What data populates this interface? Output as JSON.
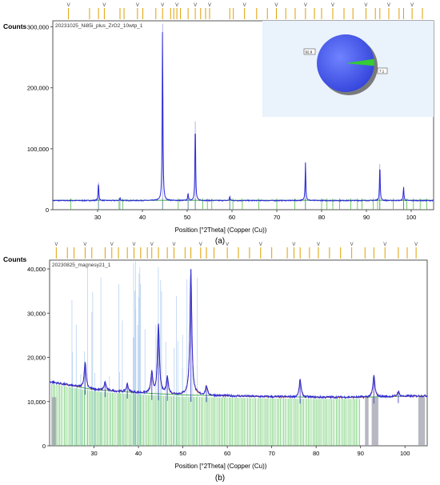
{
  "figure": {
    "caption_a": "(a)",
    "caption_b": "(b)"
  },
  "chart_data": [
    {
      "type": "line",
      "panel": "a",
      "title": "20231025_Ni85i_plus_ZrO2_10wtp_1",
      "ylabel": "Counts",
      "xlabel": "Position [°2Theta] (Copper (Cu))",
      "xlim": [
        20,
        105
      ],
      "ylim": [
        0,
        310000
      ],
      "xticks": [
        30,
        40,
        50,
        60,
        70,
        80,
        90,
        100
      ],
      "yticks": [
        0,
        100000,
        200000,
        300000
      ],
      "ytick_labels": [
        "0",
        "100,000",
        "200,000",
        "300,000"
      ],
      "grid": false,
      "colors": {
        "pattern": "#2b2bd6",
        "background_fit": "#4caf50",
        "ref_marks": "#e0a000",
        "pie_main": "#4a5ef0",
        "pie_minor": "#33cc33"
      },
      "baseline": 15000,
      "peaks": [
        {
          "x": 30.2,
          "y": 45000
        },
        {
          "x": 35.0,
          "y": 20000
        },
        {
          "x": 44.5,
          "y": 305000
        },
        {
          "x": 50.2,
          "y": 28000
        },
        {
          "x": 51.8,
          "y": 145000
        },
        {
          "x": 59.5,
          "y": 22000
        },
        {
          "x": 76.4,
          "y": 78000
        },
        {
          "x": 93.0,
          "y": 75000
        },
        {
          "x": 98.3,
          "y": 38000
        }
      ],
      "pie": {
        "slices": [
          {
            "label": "92.9",
            "value": 92.9
          },
          {
            "label": "7.1",
            "value": 7.1
          }
        ]
      },
      "ref_positions_top": [
        23.5,
        28.2,
        30.2,
        31.5,
        35.0,
        35.9,
        38.9,
        40.1,
        43.0,
        44.5,
        46.3,
        47.0,
        47.7,
        48.5,
        50.2,
        51.8,
        53.0,
        54.1,
        55.0,
        59.5,
        60.3,
        62.8,
        65.5,
        67.9,
        69.9,
        72.0,
        74.1,
        76.4,
        78.4,
        80.0,
        82.5,
        85.0,
        87.0,
        89.9,
        92.0,
        93.0,
        95.0,
        97.3,
        98.3,
        100.2,
        102.5
      ],
      "ref_positions_bottom": [
        24.0,
        30.2,
        34.8,
        35.6,
        44.5,
        48.0,
        50.2,
        51.8,
        53.5,
        54.5,
        55.5,
        59.5,
        60.2,
        62.3,
        66.0,
        70.0,
        74.0,
        76.4,
        80.0,
        81.2,
        82.5,
        84.0,
        86.5,
        88.0,
        89.0,
        91.5,
        92.5,
        93.0,
        96.0,
        98.3,
        99.0,
        100.5,
        102.0,
        103.5
      ]
    },
    {
      "type": "line",
      "panel": "b",
      "title": "20230825_magnesy21_1",
      "ylabel": "Counts",
      "xlabel": "Position [°2Theta] (Copper (Cu))",
      "xlim": [
        20,
        105
      ],
      "ylim": [
        0,
        42000
      ],
      "xticks": [
        30,
        40,
        50,
        60,
        70,
        80,
        90,
        100
      ],
      "yticks": [
        0,
        10000,
        20000,
        30000,
        40000
      ],
      "ytick_labels": [
        "0",
        "10,000",
        "20,000",
        "30,000",
        "40,000"
      ],
      "grid": false,
      "colors": {
        "pattern": "#2b2bd6",
        "fit": "#e05a2a",
        "background_fit": "#4caf50",
        "ref_marks": "#e0a000",
        "ref_light": "#a9c8ee",
        "ref_grey": "#9a9aa8"
      },
      "background": [
        [
          20,
          14500
        ],
        [
          30,
          12700
        ],
        [
          40,
          12000
        ],
        [
          50,
          11500
        ],
        [
          60,
          11300
        ],
        [
          70,
          11100
        ],
        [
          80,
          11000
        ],
        [
          90,
          11000
        ],
        [
          100,
          11200
        ],
        [
          105,
          11300
        ]
      ],
      "peaks": [
        {
          "x": 28.0,
          "y": 19000
        },
        {
          "x": 32.5,
          "y": 14500
        },
        {
          "x": 37.5,
          "y": 14000
        },
        {
          "x": 43.0,
          "y": 16500
        },
        {
          "x": 44.5,
          "y": 27500
        },
        {
          "x": 46.5,
          "y": 15500
        },
        {
          "x": 51.8,
          "y": 40000
        },
        {
          "x": 55.3,
          "y": 13500
        },
        {
          "x": 76.4,
          "y": 15000
        },
        {
          "x": 93.0,
          "y": 16000
        },
        {
          "x": 98.5,
          "y": 12300
        }
      ],
      "ref_positions_top": [
        21.5,
        24.0,
        25.5,
        28.0,
        29.5,
        32.5,
        34.0,
        35.5,
        37.5,
        39.0,
        40.5,
        42.0,
        43.0,
        44.5,
        46.5,
        48.0,
        50.5,
        51.8,
        54.0,
        55.3,
        57.0,
        60.0,
        62.5,
        65.0,
        67.5,
        70.0,
        73.5,
        75.0,
        76.4,
        78.5,
        80.5,
        83.0,
        85.5,
        88.0,
        91.0,
        93.0,
        95.5,
        98.5,
        100.5,
        102.5
      ]
    }
  ]
}
